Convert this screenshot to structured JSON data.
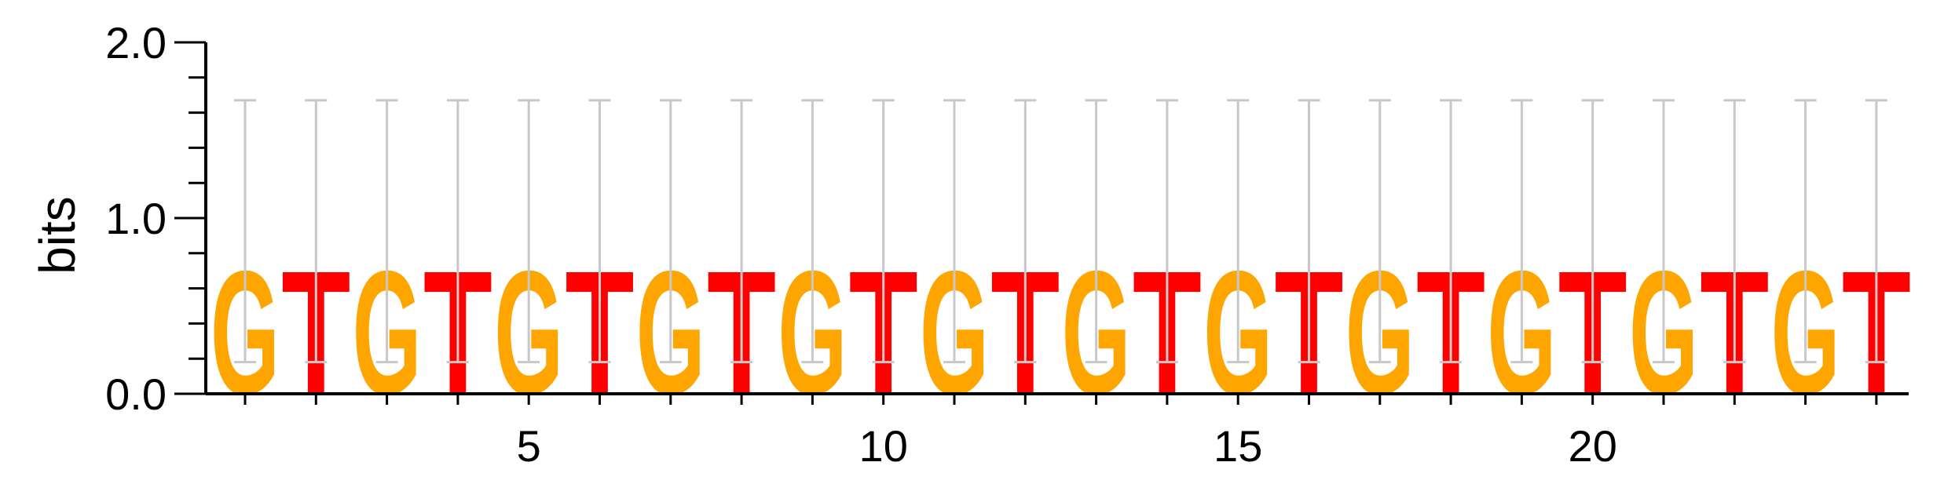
{
  "chart_data": {
    "type": "sequence-logo",
    "ylabel": "bits",
    "ylim": [
      0,
      2.0
    ],
    "y_ticks": [
      {
        "value": 0.0,
        "label": "0.0"
      },
      {
        "value": 1.0,
        "label": "1.0"
      },
      {
        "value": 2.0,
        "label": "2.0"
      }
    ],
    "x_ticks": [
      {
        "value": 5,
        "label": "5"
      },
      {
        "value": 10,
        "label": "10"
      },
      {
        "value": 15,
        "label": "15"
      },
      {
        "value": 20,
        "label": "20"
      }
    ],
    "positions": [
      {
        "pos": 1,
        "letter": "G",
        "height": 0.72,
        "err_low": 0.18,
        "err_high": 1.67
      },
      {
        "pos": 2,
        "letter": "T",
        "height": 0.72,
        "err_low": 0.18,
        "err_high": 1.67
      },
      {
        "pos": 3,
        "letter": "G",
        "height": 0.72,
        "err_low": 0.18,
        "err_high": 1.67
      },
      {
        "pos": 4,
        "letter": "T",
        "height": 0.72,
        "err_low": 0.18,
        "err_high": 1.67
      },
      {
        "pos": 5,
        "letter": "G",
        "height": 0.72,
        "err_low": 0.18,
        "err_high": 1.67
      },
      {
        "pos": 6,
        "letter": "T",
        "height": 0.72,
        "err_low": 0.18,
        "err_high": 1.67
      },
      {
        "pos": 7,
        "letter": "G",
        "height": 0.72,
        "err_low": 0.18,
        "err_high": 1.67
      },
      {
        "pos": 8,
        "letter": "T",
        "height": 0.72,
        "err_low": 0.18,
        "err_high": 1.67
      },
      {
        "pos": 9,
        "letter": "G",
        "height": 0.72,
        "err_low": 0.18,
        "err_high": 1.67
      },
      {
        "pos": 10,
        "letter": "T",
        "height": 0.72,
        "err_low": 0.18,
        "err_high": 1.67
      },
      {
        "pos": 11,
        "letter": "G",
        "height": 0.72,
        "err_low": 0.18,
        "err_high": 1.67
      },
      {
        "pos": 12,
        "letter": "T",
        "height": 0.72,
        "err_low": 0.18,
        "err_high": 1.67
      },
      {
        "pos": 13,
        "letter": "G",
        "height": 0.72,
        "err_low": 0.18,
        "err_high": 1.67
      },
      {
        "pos": 14,
        "letter": "T",
        "height": 0.72,
        "err_low": 0.18,
        "err_high": 1.67
      },
      {
        "pos": 15,
        "letter": "G",
        "height": 0.72,
        "err_low": 0.18,
        "err_high": 1.67
      },
      {
        "pos": 16,
        "letter": "T",
        "height": 0.72,
        "err_low": 0.18,
        "err_high": 1.67
      },
      {
        "pos": 17,
        "letter": "G",
        "height": 0.72,
        "err_low": 0.18,
        "err_high": 1.67
      },
      {
        "pos": 18,
        "letter": "T",
        "height": 0.72,
        "err_low": 0.18,
        "err_high": 1.67
      },
      {
        "pos": 19,
        "letter": "G",
        "height": 0.72,
        "err_low": 0.18,
        "err_high": 1.67
      },
      {
        "pos": 20,
        "letter": "T",
        "height": 0.72,
        "err_low": 0.18,
        "err_high": 1.67
      },
      {
        "pos": 21,
        "letter": "G",
        "height": 0.72,
        "err_low": 0.18,
        "err_high": 1.67
      },
      {
        "pos": 22,
        "letter": "T",
        "height": 0.72,
        "err_low": 0.18,
        "err_high": 1.67
      },
      {
        "pos": 23,
        "letter": "G",
        "height": 0.72,
        "err_low": 0.18,
        "err_high": 1.67
      },
      {
        "pos": 24,
        "letter": "T",
        "height": 0.72,
        "err_low": 0.18,
        "err_high": 1.67
      }
    ],
    "letter_colors": {
      "G": "#FFA500",
      "T": "#FF0000"
    },
    "errorbar_color": "#C8C8C8",
    "grid": false,
    "legend": "none"
  }
}
